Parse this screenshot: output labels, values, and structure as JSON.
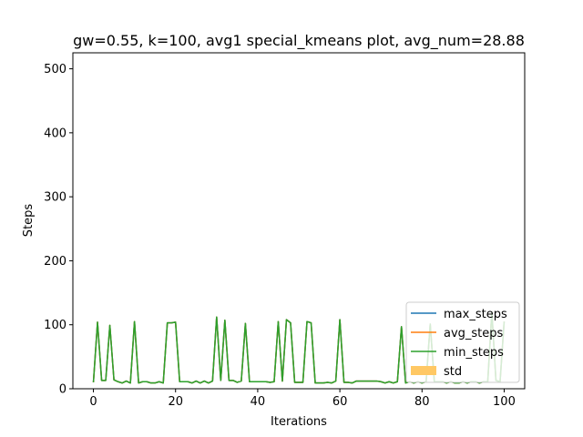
{
  "chart_data": {
    "type": "line",
    "title": "gw=0.55, k=100, avg1 special_kmeans plot, avg_num=28.88",
    "xlabel": "Iterations",
    "ylabel": "Steps",
    "xlim": [
      -5,
      105
    ],
    "ylim": [
      0,
      525
    ],
    "xticks": [
      0,
      20,
      40,
      60,
      80,
      100
    ],
    "yticks": [
      0,
      100,
      200,
      300,
      400,
      500
    ],
    "legend_position": "lower-right",
    "x": [
      0,
      1,
      2,
      3,
      4,
      5,
      6,
      7,
      8,
      9,
      10,
      11,
      12,
      13,
      14,
      15,
      16,
      17,
      18,
      19,
      20,
      21,
      22,
      23,
      24,
      25,
      26,
      27,
      28,
      29,
      30,
      31,
      32,
      33,
      34,
      35,
      36,
      37,
      38,
      39,
      40,
      41,
      42,
      43,
      44,
      45,
      46,
      47,
      48,
      49,
      50,
      51,
      52,
      53,
      54,
      55,
      56,
      57,
      58,
      59,
      60,
      61,
      62,
      63,
      64,
      65,
      66,
      67,
      68,
      69,
      70,
      71,
      72,
      73,
      74,
      75,
      76,
      77,
      78,
      79,
      80,
      81,
      82,
      83,
      84,
      85,
      86,
      87,
      88,
      89,
      90,
      91,
      92,
      93,
      94,
      95,
      96,
      97,
      98,
      99,
      100
    ],
    "series": [
      {
        "name": "max_steps",
        "color": "#1f77b4",
        "values": [
          10,
          104,
          13,
          13,
          99,
          14,
          11,
          9,
          12,
          9,
          105,
          9,
          11,
          11,
          9,
          9,
          11,
          9,
          103,
          103,
          104,
          11,
          11,
          11,
          9,
          12,
          9,
          12,
          9,
          12,
          112,
          13,
          107,
          13,
          13,
          10,
          12,
          102,
          11,
          11,
          11,
          11,
          11,
          10,
          11,
          105,
          12,
          108,
          103,
          10,
          10,
          10,
          105,
          103,
          9,
          9,
          9,
          10,
          9,
          12,
          108,
          10,
          10,
          9,
          12,
          12,
          12,
          12,
          12,
          12,
          11,
          9,
          11,
          9,
          11,
          97,
          9,
          11,
          9,
          11,
          9,
          11,
          101,
          11,
          11,
          11,
          9,
          11,
          9,
          9,
          11,
          9,
          11,
          11,
          9,
          11,
          11,
          120,
          13,
          11,
          105
        ]
      },
      {
        "name": "avg_steps",
        "color": "#ff7f0e",
        "values": [
          10,
          104,
          13,
          13,
          99,
          14,
          11,
          9,
          12,
          9,
          105,
          9,
          11,
          11,
          9,
          9,
          11,
          9,
          103,
          103,
          104,
          11,
          11,
          11,
          9,
          12,
          9,
          12,
          9,
          12,
          112,
          13,
          107,
          13,
          13,
          10,
          12,
          102,
          11,
          11,
          11,
          11,
          11,
          10,
          11,
          105,
          12,
          108,
          103,
          10,
          10,
          10,
          105,
          103,
          9,
          9,
          9,
          10,
          9,
          12,
          108,
          10,
          10,
          9,
          12,
          12,
          12,
          12,
          12,
          12,
          11,
          9,
          11,
          9,
          11,
          97,
          9,
          11,
          9,
          11,
          9,
          11,
          101,
          11,
          11,
          11,
          9,
          11,
          9,
          9,
          11,
          9,
          11,
          11,
          9,
          11,
          11,
          120,
          13,
          11,
          105
        ]
      },
      {
        "name": "min_steps",
        "color": "#2ca02c",
        "values": [
          10,
          104,
          13,
          13,
          99,
          14,
          11,
          9,
          12,
          9,
          105,
          9,
          11,
          11,
          9,
          9,
          11,
          9,
          103,
          103,
          104,
          11,
          11,
          11,
          9,
          12,
          9,
          12,
          9,
          12,
          112,
          13,
          107,
          13,
          13,
          10,
          12,
          102,
          11,
          11,
          11,
          11,
          11,
          10,
          11,
          105,
          12,
          108,
          103,
          10,
          10,
          10,
          105,
          103,
          9,
          9,
          9,
          10,
          9,
          12,
          108,
          10,
          10,
          9,
          12,
          12,
          12,
          12,
          12,
          12,
          11,
          9,
          11,
          9,
          11,
          97,
          9,
          11,
          9,
          11,
          9,
          11,
          101,
          11,
          11,
          11,
          9,
          11,
          9,
          9,
          11,
          9,
          11,
          11,
          9,
          11,
          11,
          120,
          13,
          11,
          105
        ]
      }
    ],
    "std_band": {
      "name": "std",
      "color": "#ffc864"
    }
  }
}
